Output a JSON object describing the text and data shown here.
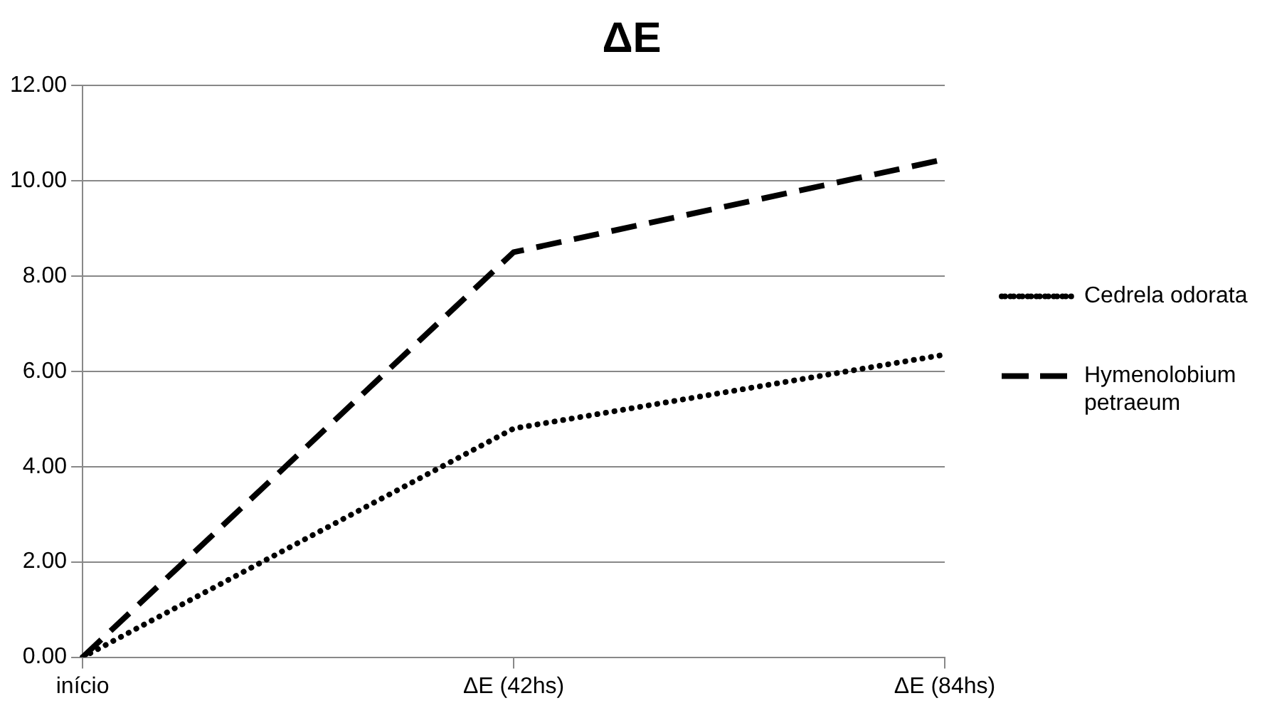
{
  "chart_data": {
    "type": "line",
    "title": "ΔE",
    "categories": [
      "início",
      "ΔE (42hs)",
      "ΔE (84hs)"
    ],
    "series": [
      {
        "name": "Cedrela odorata",
        "color": "#000000",
        "line_style": "dotted",
        "values": [
          0,
          4.8,
          6.35
        ]
      },
      {
        "name": "Hymenolobium petraeum",
        "color": "#000000",
        "line_style": "dashed",
        "values": [
          0,
          8.5,
          10.45
        ]
      }
    ],
    "ylim": [
      0,
      12
    ],
    "yticks": [
      {
        "value": 0,
        "label": "0.00"
      },
      {
        "value": 2,
        "label": "2.00"
      },
      {
        "value": 4,
        "label": "4.00"
      },
      {
        "value": 6,
        "label": "6.00"
      },
      {
        "value": 8,
        "label": "8.00"
      },
      {
        "value": 10,
        "label": "10.00"
      },
      {
        "value": 12,
        "label": "12.00"
      }
    ],
    "grid": "y",
    "legend": "right",
    "marker": "none"
  }
}
